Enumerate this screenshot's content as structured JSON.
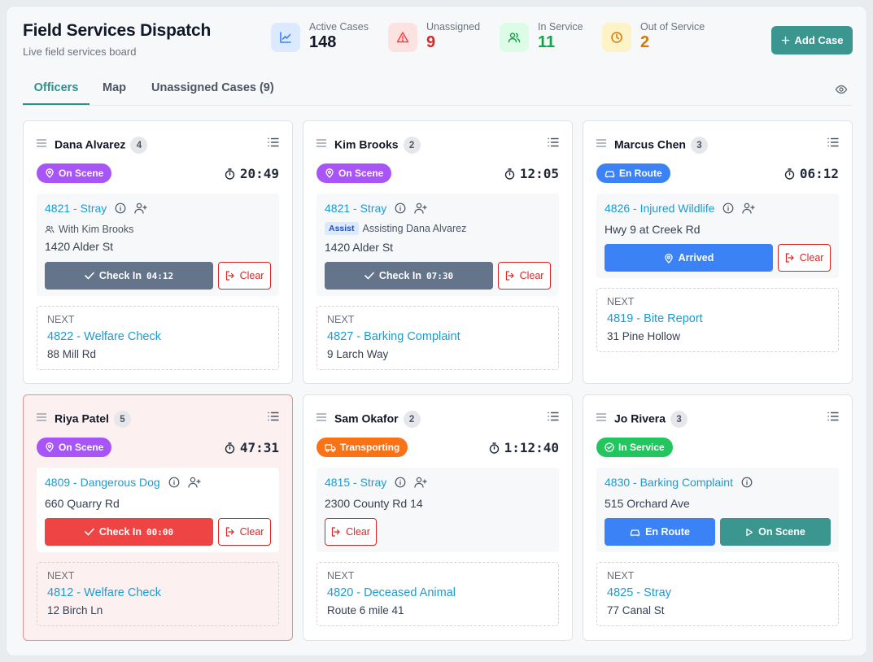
{
  "header": {
    "title": "Field Services Dispatch",
    "subtitle": "Live field services board",
    "add_case_label": "Add Case"
  },
  "stats": [
    {
      "label": "Active Cases",
      "value": "148",
      "color": "#111827",
      "icon": "chart-line-icon"
    },
    {
      "label": "Unassigned",
      "value": "9",
      "color": "#dc2626",
      "icon": "warning-icon"
    },
    {
      "label": "In Service",
      "value": "11",
      "color": "#16a34a",
      "icon": "users-icon"
    },
    {
      "label": "Out of Service",
      "value": "2",
      "color": "#d97706",
      "icon": "clock-icon"
    }
  ],
  "tabs": [
    {
      "label": "Officers",
      "active": true
    },
    {
      "label": "Map",
      "active": false
    },
    {
      "label": "Unassigned Cases (9)",
      "active": false
    }
  ],
  "officers": [
    {
      "name": "Dana Alvarez",
      "count": "4",
      "status": "On Scene",
      "status_color": "#a855f7",
      "timer": "20:49",
      "current": {
        "case": "4821 - Stray",
        "note": "With Kim Brooks",
        "address": "1420 Alder St",
        "primary_label": "Check In",
        "primary_time": "04:12",
        "clear_label": "Clear"
      },
      "next": {
        "label": "NEXT",
        "case": "4822 - Welfare Check",
        "address": "88 Mill Rd"
      }
    },
    {
      "name": "Kim Brooks",
      "count": "2",
      "status": "On Scene",
      "status_color": "#a855f7",
      "timer": "12:05",
      "current": {
        "case": "4821 - Stray",
        "chip": "Assist",
        "note": "Assisting Dana Alvarez",
        "address": "1420 Alder St",
        "primary_label": "Check In",
        "primary_time": "07:30",
        "clear_label": "Clear"
      },
      "next": {
        "label": "NEXT",
        "case": "4827 - Barking Complaint",
        "address": "9 Larch Way"
      }
    },
    {
      "name": "Marcus Chen",
      "count": "3",
      "status": "En Route",
      "status_color": "#3b82f6",
      "timer": "06:12",
      "current": {
        "case": "4826 - Injured Wildlife",
        "address": "Hwy 9 at Creek Rd",
        "primary_label": "Arrived",
        "clear_label": "Clear"
      },
      "next": {
        "label": "NEXT",
        "case": "4819 - Bite Report",
        "address": "31 Pine Hollow"
      }
    },
    {
      "name": "Riya Patel",
      "count": "5",
      "status": "On Scene",
      "status_color": "#a855f7",
      "timer": "47:31",
      "current": {
        "case": "4809 - Dangerous Dog",
        "address": "660 Quarry Rd",
        "primary_label": "Check In",
        "primary_time": "00:00",
        "clear_label": "Clear"
      },
      "next": {
        "label": "NEXT",
        "case": "4812 - Welfare Check",
        "address": "12 Birch Ln"
      }
    },
    {
      "name": "Sam Okafor",
      "count": "2",
      "status": "Transporting",
      "status_color": "#f97316",
      "timer": "1:12:40",
      "current": {
        "case": "4815 - Stray",
        "address": "2300 County Rd 14",
        "clear_label": "Clear"
      },
      "next": {
        "label": "NEXT",
        "case": "4820 - Deceased Animal",
        "address": "Route 6 mile 41"
      }
    },
    {
      "name": "Jo Rivera",
      "count": "3",
      "status": "In Service",
      "status_color": "#22c55e",
      "current": {
        "case": "4830 - Barking Complaint",
        "address": "515 Orchard Ave",
        "enroute_label": "En Route",
        "onscene_label": "On Scene"
      },
      "next": {
        "label": "NEXT",
        "case": "4825 - Stray",
        "address": "77 Canal St"
      }
    }
  ]
}
